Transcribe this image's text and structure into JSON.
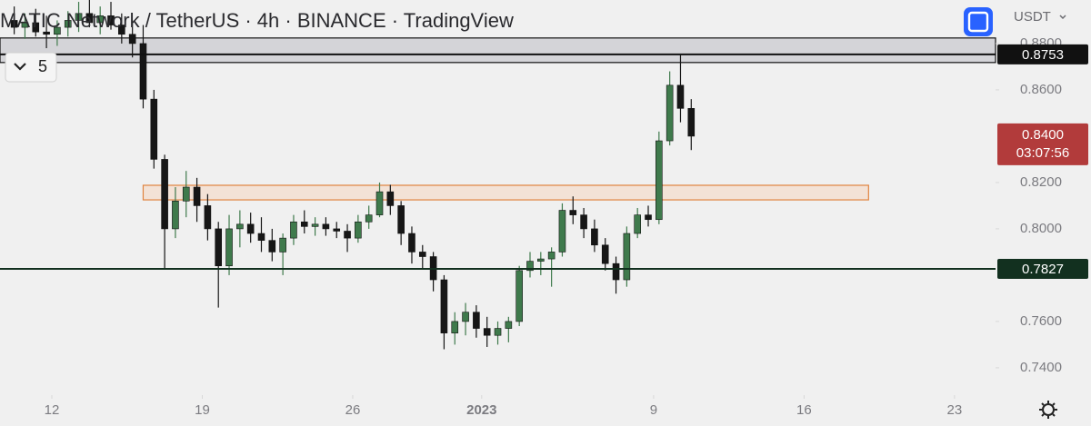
{
  "chart_data": {
    "type": "candlestick",
    "title": "MATIC Network / TetherUS · 4h · BINANCE · TradingView",
    "currency": "USDT",
    "interval_badge": "5",
    "x": [
      "2022-12-10 00:00",
      "2022-12-10 12:00",
      "2022-12-11 00:00",
      "2022-12-11 12:00",
      "2022-12-12 00:00",
      "2022-12-12 12:00",
      "2022-12-13 00:00",
      "2022-12-13 12:00",
      "2022-12-14 00:00",
      "2022-12-14 12:00",
      "2022-12-15 00:00",
      "2022-12-15 12:00",
      "2022-12-16 00:00",
      "2022-12-16 12:00",
      "2022-12-17 00:00",
      "2022-12-17 12:00",
      "2022-12-18 00:00",
      "2022-12-18 12:00",
      "2022-12-19 00:00",
      "2022-12-19 12:00",
      "2022-12-20 00:00",
      "2022-12-20 12:00",
      "2022-12-21 00:00",
      "2022-12-21 12:00",
      "2022-12-22 00:00",
      "2022-12-22 12:00",
      "2022-12-23 00:00",
      "2022-12-23 12:00",
      "2022-12-24 00:00",
      "2022-12-24 12:00",
      "2022-12-25 00:00",
      "2022-12-25 12:00",
      "2022-12-26 00:00",
      "2022-12-26 12:00",
      "2022-12-27 00:00",
      "2022-12-27 12:00",
      "2022-12-28 00:00",
      "2022-12-28 12:00",
      "2022-12-29 00:00",
      "2022-12-29 12:00",
      "2022-12-30 00:00",
      "2022-12-30 12:00",
      "2022-12-31 00:00",
      "2022-12-31 12:00",
      "2023-01-01 00:00",
      "2023-01-01 12:00",
      "2023-01-02 00:00",
      "2023-01-02 12:00",
      "2023-01-03 00:00",
      "2023-01-03 12:00",
      "2023-01-04 00:00",
      "2023-01-04 12:00",
      "2023-01-05 00:00",
      "2023-01-05 12:00",
      "2023-01-06 00:00",
      "2023-01-06 12:00",
      "2023-01-07 00:00",
      "2023-01-07 12:00",
      "2023-01-08 00:00",
      "2023-01-08 12:00",
      "2023-01-09 00:00",
      "2023-01-09 12:00",
      "2023-01-10 00:00",
      "2023-01-10 12:00"
    ],
    "open": [
      0.89,
      0.887,
      0.889,
      0.885,
      0.884,
      0.887,
      0.89,
      0.893,
      0.889,
      0.892,
      0.888,
      0.884,
      0.88,
      0.856,
      0.83,
      0.8,
      0.812,
      0.818,
      0.81,
      0.8,
      0.784,
      0.8,
      0.802,
      0.798,
      0.795,
      0.79,
      0.796,
      0.803,
      0.801,
      0.802,
      0.8,
      0.799,
      0.796,
      0.803,
      0.806,
      0.816,
      0.81,
      0.798,
      0.79,
      0.788,
      0.778,
      0.755,
      0.76,
      0.764,
      0.757,
      0.754,
      0.757,
      0.76,
      0.782,
      0.786,
      0.787,
      0.79,
      0.808,
      0.806,
      0.8,
      0.793,
      0.785,
      0.778,
      0.798,
      0.806,
      0.804,
      0.838,
      0.862,
      0.852
    ],
    "high": [
      0.896,
      0.893,
      0.895,
      0.892,
      0.89,
      0.894,
      0.898,
      0.899,
      0.896,
      0.898,
      0.893,
      0.89,
      0.888,
      0.86,
      0.832,
      0.818,
      0.825,
      0.822,
      0.815,
      0.803,
      0.806,
      0.808,
      0.807,
      0.805,
      0.8,
      0.798,
      0.806,
      0.808,
      0.805,
      0.805,
      0.803,
      0.802,
      0.806,
      0.81,
      0.82,
      0.819,
      0.812,
      0.801,
      0.793,
      0.79,
      0.78,
      0.764,
      0.768,
      0.767,
      0.762,
      0.76,
      0.762,
      0.784,
      0.79,
      0.79,
      0.792,
      0.811,
      0.814,
      0.809,
      0.804,
      0.796,
      0.788,
      0.801,
      0.809,
      0.81,
      0.842,
      0.868,
      0.875,
      0.856
    ],
    "low": [
      0.884,
      0.882,
      0.883,
      0.878,
      0.879,
      0.883,
      0.885,
      0.887,
      0.884,
      0.886,
      0.88,
      0.874,
      0.852,
      0.826,
      0.783,
      0.796,
      0.805,
      0.803,
      0.795,
      0.766,
      0.78,
      0.792,
      0.794,
      0.79,
      0.786,
      0.78,
      0.793,
      0.798,
      0.797,
      0.797,
      0.796,
      0.79,
      0.794,
      0.8,
      0.805,
      0.806,
      0.793,
      0.785,
      0.783,
      0.773,
      0.748,
      0.75,
      0.754,
      0.753,
      0.749,
      0.75,
      0.751,
      0.758,
      0.779,
      0.78,
      0.775,
      0.788,
      0.802,
      0.796,
      0.79,
      0.782,
      0.772,
      0.775,
      0.796,
      0.801,
      0.802,
      0.836,
      0.846,
      0.834
    ],
    "close": [
      0.887,
      0.889,
      0.885,
      0.884,
      0.887,
      0.89,
      0.893,
      0.889,
      0.892,
      0.888,
      0.884,
      0.88,
      0.856,
      0.83,
      0.8,
      0.812,
      0.818,
      0.81,
      0.8,
      0.784,
      0.8,
      0.802,
      0.798,
      0.795,
      0.79,
      0.796,
      0.803,
      0.801,
      0.802,
      0.8,
      0.799,
      0.796,
      0.803,
      0.806,
      0.816,
      0.81,
      0.798,
      0.79,
      0.788,
      0.778,
      0.755,
      0.76,
      0.764,
      0.757,
      0.754,
      0.757,
      0.76,
      0.782,
      0.786,
      0.787,
      0.79,
      0.808,
      0.806,
      0.8,
      0.793,
      0.785,
      0.778,
      0.798,
      0.806,
      0.804,
      0.838,
      0.862,
      0.852,
      0.84
    ],
    "up_color": "#3f7a4c",
    "down_color": "#161616",
    "ylim": [
      0.7282,
      0.8988
    ],
    "yticks": [
      {
        "value": 0.74,
        "label": "0.7400"
      },
      {
        "value": 0.76,
        "label": "0.7600"
      },
      {
        "value": 0.8,
        "label": "0.8000"
      },
      {
        "value": 0.82,
        "label": "0.8200"
      },
      {
        "value": 0.86,
        "label": "0.8600"
      },
      {
        "value": 0.88,
        "label": "0.8800"
      }
    ],
    "xticks": [
      {
        "value": "2022-12-12 00:00",
        "label": "12"
      },
      {
        "value": "2022-12-19 00:00",
        "label": "19"
      },
      {
        "value": "2022-12-26 00:00",
        "label": "26"
      },
      {
        "value": "2023-01-01 00:00",
        "label": "2023"
      },
      {
        "value": "2023-01-09 00:00",
        "label": "9"
      },
      {
        "value": "2023-01-16 00:00",
        "label": "16"
      },
      {
        "value": "2023-01-23 00:00",
        "label": "23"
      }
    ],
    "levels": [
      {
        "value": 0.8753,
        "label": "0.8753",
        "color": "#111111"
      },
      {
        "value": 0.7827,
        "label": "0.7827",
        "color": "#12301f"
      }
    ],
    "zones": [
      {
        "y": [
          0.8718,
          0.8824
        ],
        "color": "#d4d4d8",
        "stroke": "#111111"
      },
      {
        "y": [
          0.8125,
          0.8188
        ],
        "x": [
          "2022-12-16 06:00",
          "2023-01-19 00:00"
        ],
        "color": "#f3e2d6",
        "stroke": "#e0833f"
      }
    ],
    "last_label": "0.8400",
    "last_color": "#b23b3b",
    "countdown": "03:07:56"
  }
}
